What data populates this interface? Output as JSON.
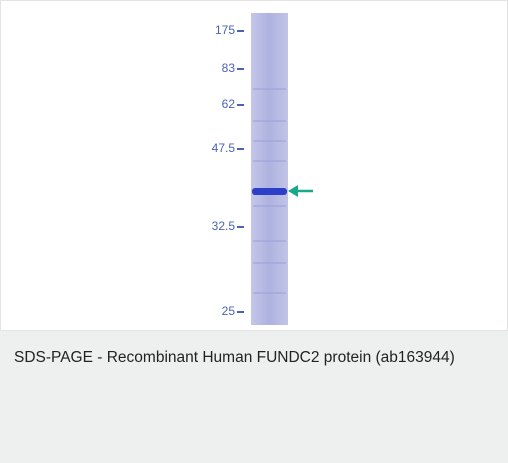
{
  "figure": {
    "markers": [
      "175",
      "83",
      "62",
      "47.5",
      "32.5",
      "25"
    ],
    "caption": "SDS-PAGE - Recombinant Human FUNDC2 protein (ab163944)"
  }
}
